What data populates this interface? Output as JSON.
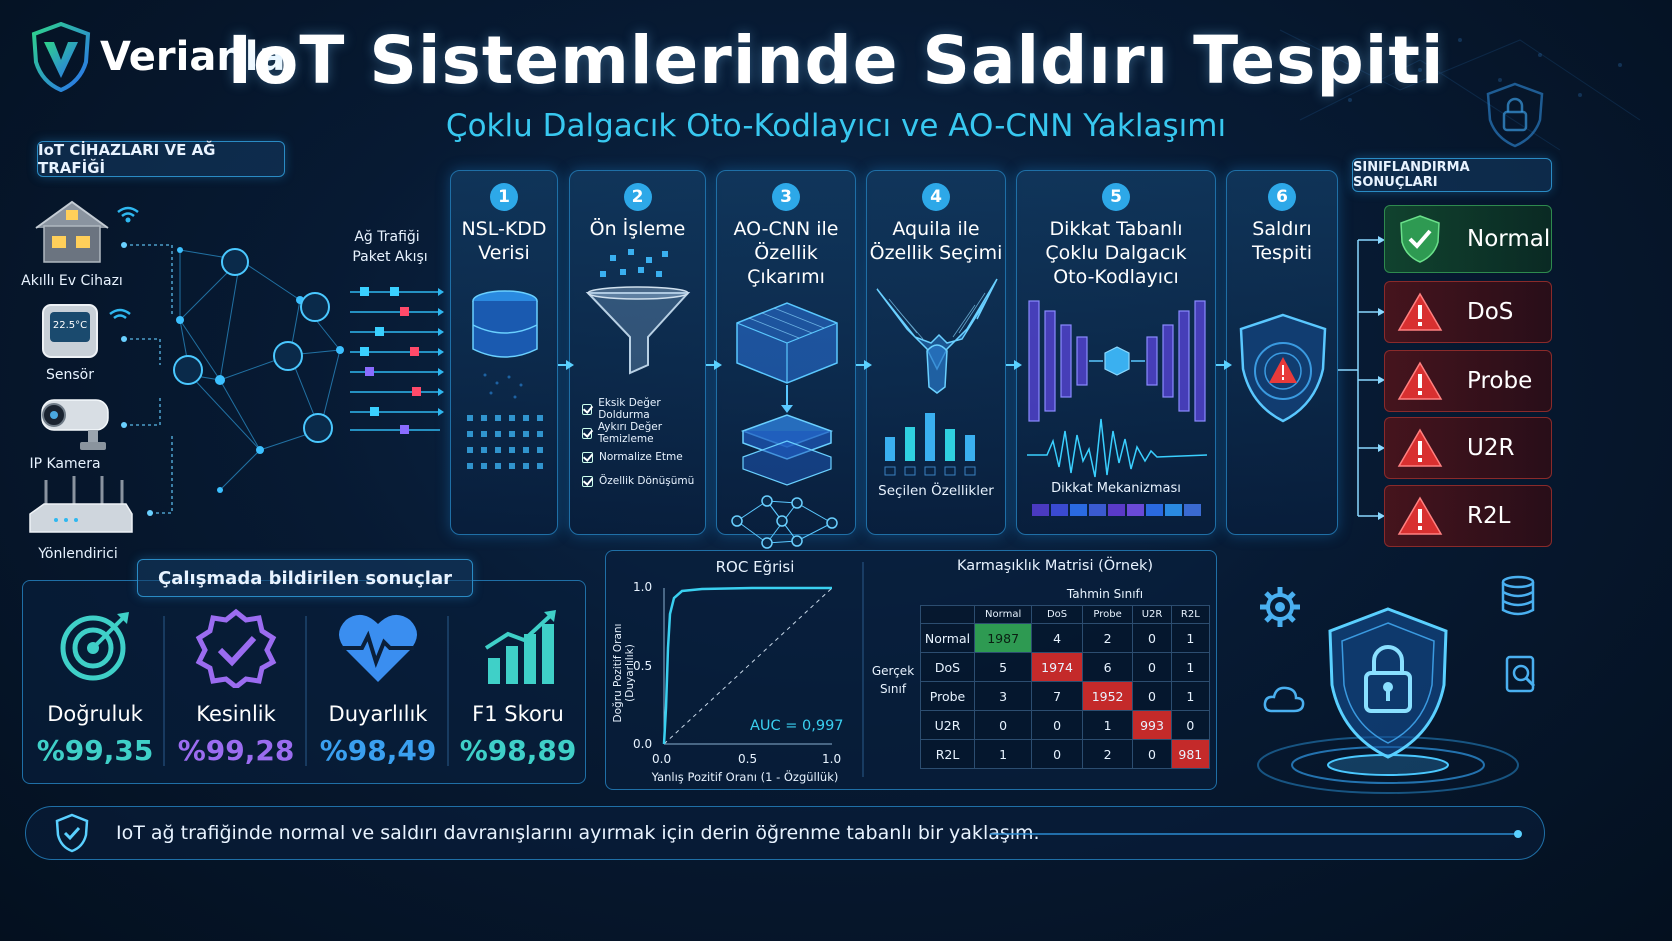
{
  "brand": {
    "name": "Verianla"
  },
  "header": {
    "title": "IoT Sistemlerinde Saldırı Tespiti",
    "subtitle": "Çoklu Dalgacık Oto-Kodlayıcı ve AO-CNN Yaklaşımı"
  },
  "devices": {
    "section_label": "IoT CİHAZLARI VE AĞ TRAFİĞİ",
    "items": [
      {
        "label": "Akıllı Ev Cihazı",
        "icon": "smart-home-icon"
      },
      {
        "label": "Sensör",
        "icon": "thermostat-icon",
        "display": "22.5°C"
      },
      {
        "label": "IP Kamera",
        "icon": "camera-icon"
      },
      {
        "label": "Yönlendirici",
        "icon": "router-icon"
      }
    ],
    "traffic_label_1": "Ağ Trafiği",
    "traffic_label_2": "Paket Akışı"
  },
  "pipeline": {
    "steps": [
      {
        "num": "1",
        "title_1": "NSL-KDD",
        "title_2": "Verisi",
        "icon": "database-icon"
      },
      {
        "num": "2",
        "title_1": "Ön İşleme",
        "title_2": "",
        "icon": "funnel-icon",
        "checks": [
          "Eksik Değer Doldurma",
          "Aykırı Değer Temizleme",
          "Normalize Etme",
          "Özellik Dönüşümü"
        ]
      },
      {
        "num": "3",
        "title_1": "AO-CNN ile",
        "title_2": "Özellik Çıkarımı",
        "icon": "cnn-layers-icon"
      },
      {
        "num": "4",
        "title_1": "Aquila ile",
        "title_2": "Özellik Seçimi",
        "icon": "eagle-icon",
        "caption": "Seçilen Özellikler"
      },
      {
        "num": "5",
        "title_1": "Dikkat Tabanlı",
        "title_2": "Çoklu Dalgacık",
        "title_3": "Oto-Kodlayıcı",
        "icon": "autoencoder-icon",
        "caption": "Dikkat Mekanizması"
      },
      {
        "num": "6",
        "title_1": "Saldırı",
        "title_2": "Tespiti",
        "icon": "alert-shield-icon"
      }
    ]
  },
  "results": {
    "label": "SINIFLANDIRMA SONUÇLARI",
    "classes": [
      {
        "name": "Normal",
        "status": "ok",
        "icon": "check-shield-icon"
      },
      {
        "name": "DoS",
        "status": "attack",
        "icon": "warning-icon"
      },
      {
        "name": "Probe",
        "status": "attack",
        "icon": "warning-icon"
      },
      {
        "name": "U2R",
        "status": "attack",
        "icon": "warning-icon"
      },
      {
        "name": "R2L",
        "status": "attack",
        "icon": "warning-icon"
      }
    ]
  },
  "metrics": {
    "title": "Çalışmada bildirilen sonuçlar",
    "items": [
      {
        "name": "Doğruluk",
        "value": "%99,35",
        "color": "#3fd0c8",
        "icon": "target-icon"
      },
      {
        "name": "Kesinlik",
        "value": "%99,28",
        "color": "#9b6cf0",
        "icon": "badge-check-icon"
      },
      {
        "name": "Duyarlılık",
        "value": "%98,49",
        "color": "#3aa0f0",
        "icon": "heartbeat-icon"
      },
      {
        "name": "F1 Skoru",
        "value": "%98,89",
        "color": "#3fd0c8",
        "icon": "growth-chart-icon"
      }
    ]
  },
  "roc": {
    "title": "ROC Eğrisi",
    "ylabel": "Doğru Pozitif Oranı (Duyarlılık)",
    "xlabel": "Yanlış Pozitif Oranı (1 - Özgüllük)",
    "auc_label": "AUC = 0,997",
    "y_ticks": [
      "1.0",
      "0.5",
      "0.0"
    ],
    "x_ticks": [
      "0.0",
      "0.5",
      "1.0"
    ]
  },
  "confusion": {
    "title": "Karmaşıklık Matrisi (Örnek)",
    "pred_label": "Tahmin Sınıfı",
    "true_label_1": "Gerçek",
    "true_label_2": "Sınıf",
    "classes": [
      "Normal",
      "DoS",
      "Probe",
      "U2R",
      "R2L"
    ],
    "rows": [
      [
        "1987",
        "4",
        "2",
        "0",
        "1"
      ],
      [
        "5",
        "1974",
        "6",
        "0",
        "1"
      ],
      [
        "3",
        "7",
        "1952",
        "0",
        "1"
      ],
      [
        "0",
        "0",
        "1",
        "993",
        "0"
      ],
      [
        "1",
        "0",
        "2",
        "0",
        "981"
      ]
    ]
  },
  "footer": {
    "text": "IoT ağ trafiğinde normal ve saldırı davranışlarını ayırmak için derin öğrenme tabanlı bir yaklaşım."
  },
  "colors": {
    "accent": "#2da8e8",
    "ok": "#2e9a52",
    "attack": "#c42a2a",
    "cyan": "#38c8f0"
  }
}
